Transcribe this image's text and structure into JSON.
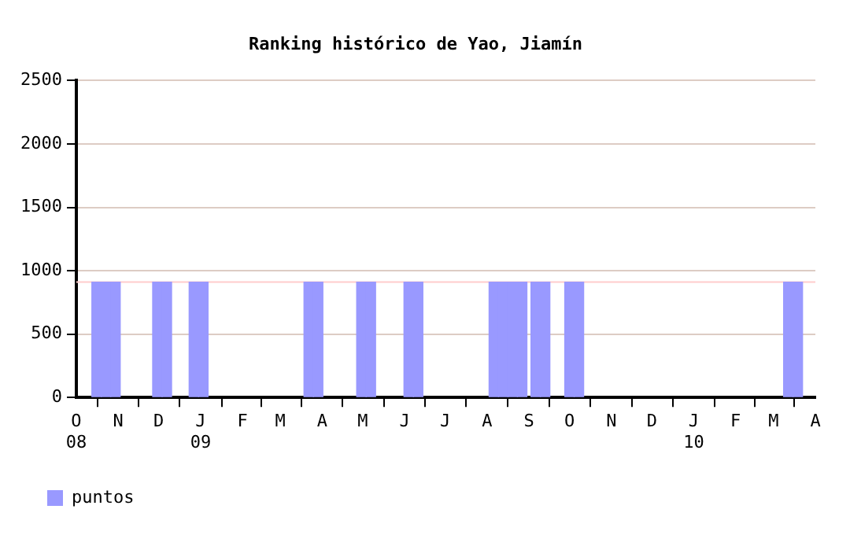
{
  "chart_data": {
    "type": "bar",
    "title": "Ranking histórico de Yao, Jiamín",
    "x": [
      "2008-10-16",
      "2008-10-23",
      "2008-10-30",
      "2008-11-30",
      "2008-12-07",
      "2008-12-27",
      "2009-01-03",
      "2009-03-22",
      "2009-03-29",
      "2009-04-30",
      "2009-05-07",
      "2009-06-04",
      "2009-06-11",
      "2009-08-06",
      "2009-08-13",
      "2009-08-20",
      "2009-08-27",
      "2009-09-06",
      "2009-09-13",
      "2009-10-01",
      "2009-10-08",
      "2010-03-12",
      "2010-03-19"
    ],
    "series": [
      {
        "name": "puntos",
        "color": "#9999ff",
        "values": [
          910,
          910,
          910,
          910,
          910,
          910,
          910,
          910,
          910,
          910,
          910,
          910,
          910,
          910,
          910,
          910,
          910,
          910,
          910,
          910,
          910,
          910,
          910
        ]
      }
    ],
    "xlim": [
      "2008-10",
      "2010-04"
    ],
    "xticks": [
      {
        "value": "2008-10",
        "label": "O\n08"
      },
      {
        "value": "2008-11",
        "label": "N"
      },
      {
        "value": "2008-12",
        "label": "D"
      },
      {
        "value": "2009-01",
        "label": "J\n09"
      },
      {
        "value": "2009-02",
        "label": "F"
      },
      {
        "value": "2009-03",
        "label": "M"
      },
      {
        "value": "2009-04",
        "label": "A"
      },
      {
        "value": "2009-05",
        "label": "M"
      },
      {
        "value": "2009-06",
        "label": "J"
      },
      {
        "value": "2009-07",
        "label": "J"
      },
      {
        "value": "2009-08",
        "label": "A"
      },
      {
        "value": "2009-09",
        "label": "S"
      },
      {
        "value": "2009-10",
        "label": "O"
      },
      {
        "value": "2009-11",
        "label": "N"
      },
      {
        "value": "2009-12",
        "label": "D"
      },
      {
        "value": "2010-01",
        "label": "J\n10"
      },
      {
        "value": "2010-02",
        "label": "F"
      },
      {
        "value": "2010-03",
        "label": "M"
      },
      {
        "value": "2010-04",
        "label": "A"
      }
    ],
    "ylim": [
      0,
      2500
    ],
    "yticks": [
      0,
      500,
      1000,
      1500,
      2000,
      2500
    ],
    "ref_lines": [
      {
        "axis": "y",
        "value": 910,
        "color": "#ffcccc"
      }
    ],
    "grid": "y",
    "legend": "bottom left"
  }
}
